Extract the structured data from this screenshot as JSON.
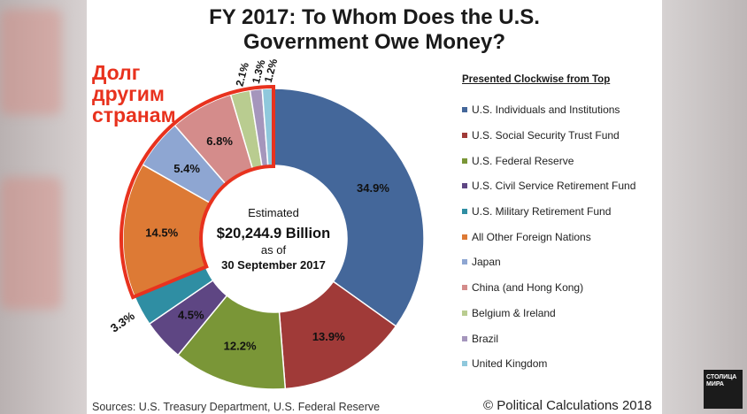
{
  "title_line1": "FY 2017: To Whom Does the U.S.",
  "title_line2": "Government Owe Money?",
  "annotation": {
    "line1": "Долг",
    "line2": "другим",
    "line3": "странам",
    "color": "#e8321e"
  },
  "center": {
    "line1": "Estimated",
    "line2": "$20,244.9 Billion",
    "line3": "as of",
    "line4": "30 September 2017"
  },
  "legend_title": "Presented Clockwise from Top",
  "source": "Sources: U.S. Treasury Department, U.S. Federal Reserve",
  "copyright": "© Political Calculations 2018",
  "logo": {
    "line1": "СТОЛИЦА",
    "line2": "МИРА"
  },
  "chart_data": {
    "type": "pie",
    "donut": true,
    "direction": "clockwise-from-top",
    "slices": [
      {
        "name": "U.S. Individuals and Institutions",
        "value": 34.9,
        "label": "34.9%",
        "color": "#44679a"
      },
      {
        "name": "U.S. Social Security Trust Fund",
        "value": 13.9,
        "label": "13.9%",
        "color": "#a03a38"
      },
      {
        "name": "U.S. Federal Reserve",
        "value": 12.2,
        "label": "12.2%",
        "color": "#7a9637"
      },
      {
        "name": "U.S. Civil Service Retirement Fund",
        "value": 4.5,
        "label": "4.5%",
        "color": "#5e4683"
      },
      {
        "name": "U.S. Military Retirement Fund",
        "value": 3.3,
        "label": "3.3%",
        "color": "#2f8ea3"
      },
      {
        "name": "All Other Foreign Nations",
        "value": 14.5,
        "label": "14.5%",
        "color": "#dd7a35"
      },
      {
        "name": "Japan",
        "value": 5.4,
        "label": "5.4%",
        "color": "#8ea6d2"
      },
      {
        "name": "China (and Hong Kong)",
        "value": 6.8,
        "label": "6.8%",
        "color": "#d48c8b"
      },
      {
        "name": "Belgium & Ireland",
        "value": 2.1,
        "label": "2.1%",
        "color": "#b9cc90"
      },
      {
        "name": "Brazil",
        "value": 1.3,
        "label": "1.3%",
        "color": "#a596bc"
      },
      {
        "name": "United Kingdom",
        "value": 1.2,
        "label": "1.2%",
        "color": "#8fc8dc"
      }
    ],
    "highlight": {
      "from": "All Other Foreign Nations",
      "to": "United Kingdom",
      "color": "#e8321e"
    }
  }
}
